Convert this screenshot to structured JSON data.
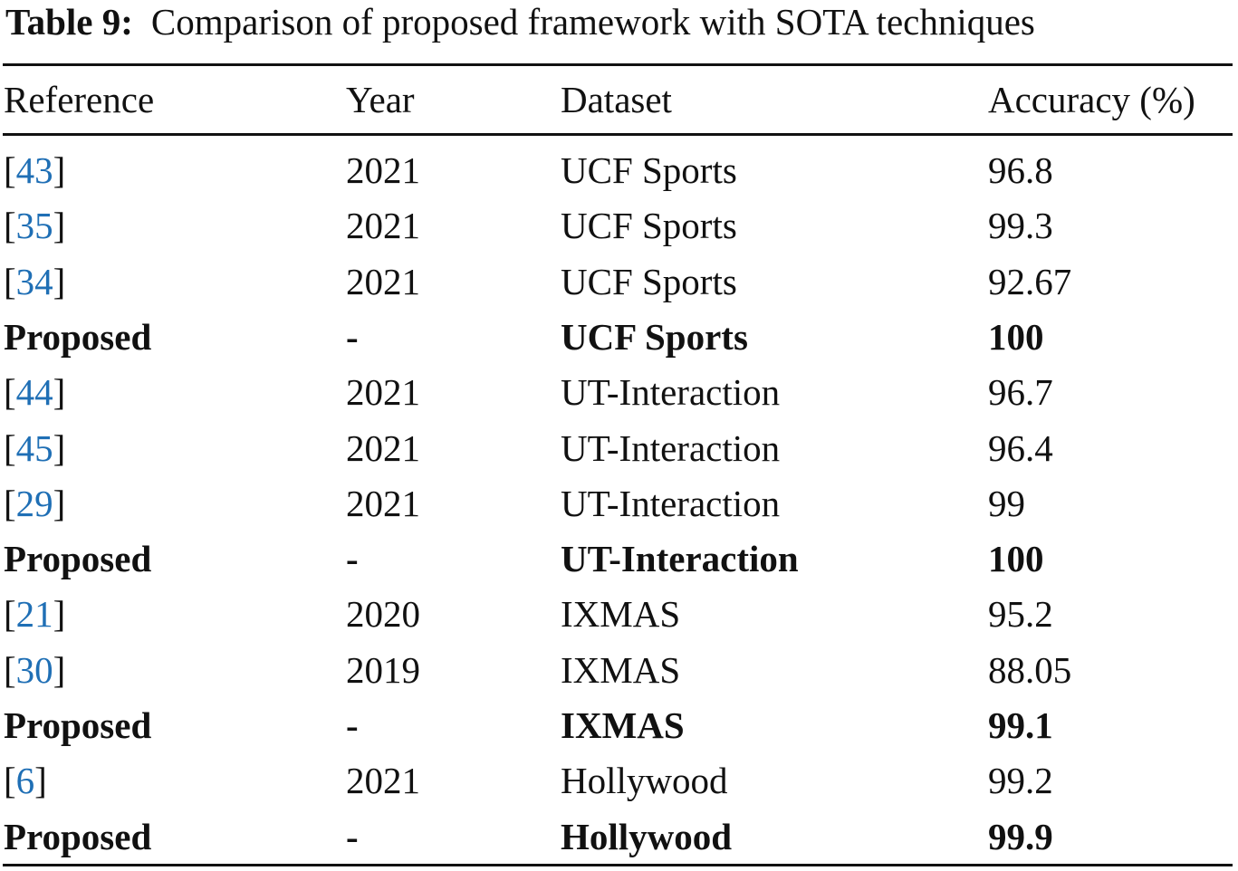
{
  "caption": {
    "label": "Table 9:",
    "text": "Comparison of proposed framework with SOTA techniques"
  },
  "table": {
    "headers": {
      "reference": "Reference",
      "year": "Year",
      "dataset": "Dataset",
      "accuracy": "Accuracy (%)"
    },
    "rows": [
      {
        "reference": "43",
        "is_citation": true,
        "year": "2021",
        "dataset": "UCF Sports",
        "accuracy": "96.8",
        "bold": false
      },
      {
        "reference": "35",
        "is_citation": true,
        "year": "2021",
        "dataset": "UCF Sports",
        "accuracy": "99.3",
        "bold": false
      },
      {
        "reference": "34",
        "is_citation": true,
        "year": "2021",
        "dataset": "UCF Sports",
        "accuracy": "92.67",
        "bold": false
      },
      {
        "reference": "Proposed",
        "is_citation": false,
        "year": "-",
        "dataset": "UCF Sports",
        "accuracy": "100",
        "bold": true
      },
      {
        "reference": "44",
        "is_citation": true,
        "year": "2021",
        "dataset": "UT-Interaction",
        "accuracy": "96.7",
        "bold": false
      },
      {
        "reference": "45",
        "is_citation": true,
        "year": "2021",
        "dataset": "UT-Interaction",
        "accuracy": "96.4",
        "bold": false
      },
      {
        "reference": "29",
        "is_citation": true,
        "year": "2021",
        "dataset": "UT-Interaction",
        "accuracy": "99",
        "bold": false
      },
      {
        "reference": "Proposed",
        "is_citation": false,
        "year": "-",
        "dataset": "UT-Interaction",
        "accuracy": "100",
        "bold": true
      },
      {
        "reference": "21",
        "is_citation": true,
        "year": "2020",
        "dataset": "IXMAS",
        "accuracy": "95.2",
        "bold": false
      },
      {
        "reference": "30",
        "is_citation": true,
        "year": "2019",
        "dataset": "IXMAS",
        "accuracy": "88.05",
        "bold": false
      },
      {
        "reference": "Proposed",
        "is_citation": false,
        "year": "-",
        "dataset": "IXMAS",
        "accuracy": "99.1",
        "bold": true
      },
      {
        "reference": "6",
        "is_citation": true,
        "year": "2021",
        "dataset": "Hollywood",
        "accuracy": "99.2",
        "bold": false
      },
      {
        "reference": "Proposed",
        "is_citation": false,
        "year": "-",
        "dataset": "Hollywood",
        "accuracy": "99.9",
        "bold": true
      }
    ]
  },
  "colors": {
    "citation_link": "#1f6fb5",
    "text": "#111111",
    "background": "#ffffff"
  }
}
